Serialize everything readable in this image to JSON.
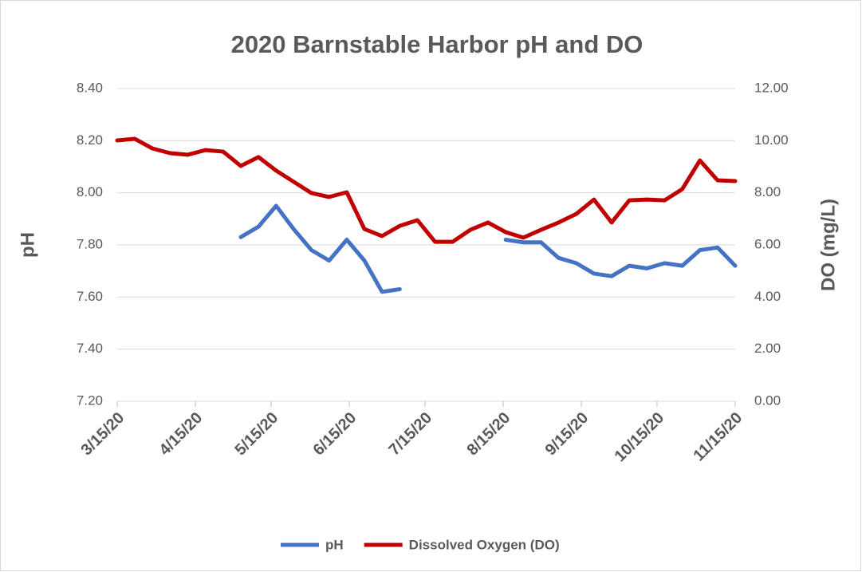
{
  "chart_data": {
    "type": "line",
    "title": "2020 Barnstable Harbor pH and DO",
    "ylabel": "pH",
    "y2label": "DO (mg/L)",
    "x": [
      "2020-03-15",
      "2020-03-22",
      "2020-03-29",
      "2020-04-05",
      "2020-04-12",
      "2020-04-19",
      "2020-04-26",
      "2020-05-03",
      "2020-05-10",
      "2020-05-17",
      "2020-05-24",
      "2020-05-31",
      "2020-06-07",
      "2020-06-14",
      "2020-06-21",
      "2020-06-28",
      "2020-07-05",
      "2020-07-12",
      "2020-07-19",
      "2020-07-26",
      "2020-08-02",
      "2020-08-09",
      "2020-08-16",
      "2020-08-23",
      "2020-08-30",
      "2020-09-06",
      "2020-09-13",
      "2020-09-20",
      "2020-09-27",
      "2020-10-04",
      "2020-10-11",
      "2020-10-18",
      "2020-10-25",
      "2020-11-01",
      "2020-11-08",
      "2020-11-15"
    ],
    "series": [
      {
        "name": "pH",
        "color": "#4472c4",
        "axis": "y",
        "values": [
          null,
          null,
          null,
          null,
          null,
          null,
          null,
          7.83,
          7.87,
          7.95,
          7.86,
          7.78,
          7.74,
          7.82,
          7.74,
          7.62,
          7.63,
          null,
          null,
          null,
          null,
          null,
          7.82,
          7.81,
          7.81,
          7.75,
          7.73,
          7.69,
          7.68,
          7.72,
          7.71,
          7.73,
          7.72,
          7.78,
          7.79,
          7.72
        ]
      },
      {
        "name": "Dissolved Oxygen (DO)",
        "color": "#c00000",
        "axis": "y2",
        "values": [
          10.01,
          10.07,
          9.7,
          9.52,
          9.46,
          9.64,
          9.58,
          9.03,
          9.37,
          8.85,
          8.42,
          7.99,
          7.84,
          8.02,
          6.61,
          6.34,
          6.73,
          6.95,
          6.12,
          6.12,
          6.58,
          6.86,
          6.49,
          6.28,
          6.58,
          6.86,
          7.19,
          7.74,
          6.86,
          7.71,
          7.74,
          7.71,
          8.14,
          9.24,
          8.48,
          8.45
        ]
      }
    ],
    "xlim": [
      "2020-03-15",
      "2020-11-15"
    ],
    "xticks": [
      {
        "value": "2020-03-15",
        "label": "3/15/20"
      },
      {
        "value": "2020-04-15",
        "label": "4/15/20"
      },
      {
        "value": "2020-05-15",
        "label": "5/15/20"
      },
      {
        "value": "2020-06-15",
        "label": "6/15/20"
      },
      {
        "value": "2020-07-15",
        "label": "7/15/20"
      },
      {
        "value": "2020-08-15",
        "label": "8/15/20"
      },
      {
        "value": "2020-09-15",
        "label": "9/15/20"
      },
      {
        "value": "2020-10-15",
        "label": "10/15/20"
      },
      {
        "value": "2020-11-15",
        "label": "11/15/20"
      }
    ],
    "ylim": [
      7.2,
      8.4
    ],
    "yticks": [
      {
        "value": 7.2,
        "label": "7.20"
      },
      {
        "value": 7.4,
        "label": "7.40"
      },
      {
        "value": 7.6,
        "label": "7.60"
      },
      {
        "value": 7.8,
        "label": "7.80"
      },
      {
        "value": 8.0,
        "label": "8.00"
      },
      {
        "value": 8.2,
        "label": "8.20"
      },
      {
        "value": 8.4,
        "label": "8.40"
      }
    ],
    "y2lim": [
      0,
      12
    ],
    "y2ticks": [
      {
        "value": 0,
        "label": "0.00"
      },
      {
        "value": 2,
        "label": "2.00"
      },
      {
        "value": 4,
        "label": "4.00"
      },
      {
        "value": 6,
        "label": "6.00"
      },
      {
        "value": 8,
        "label": "8.00"
      },
      {
        "value": 10,
        "label": "10.00"
      },
      {
        "value": 12,
        "label": "12.00"
      }
    ],
    "grid": true,
    "legend": "bottom"
  }
}
